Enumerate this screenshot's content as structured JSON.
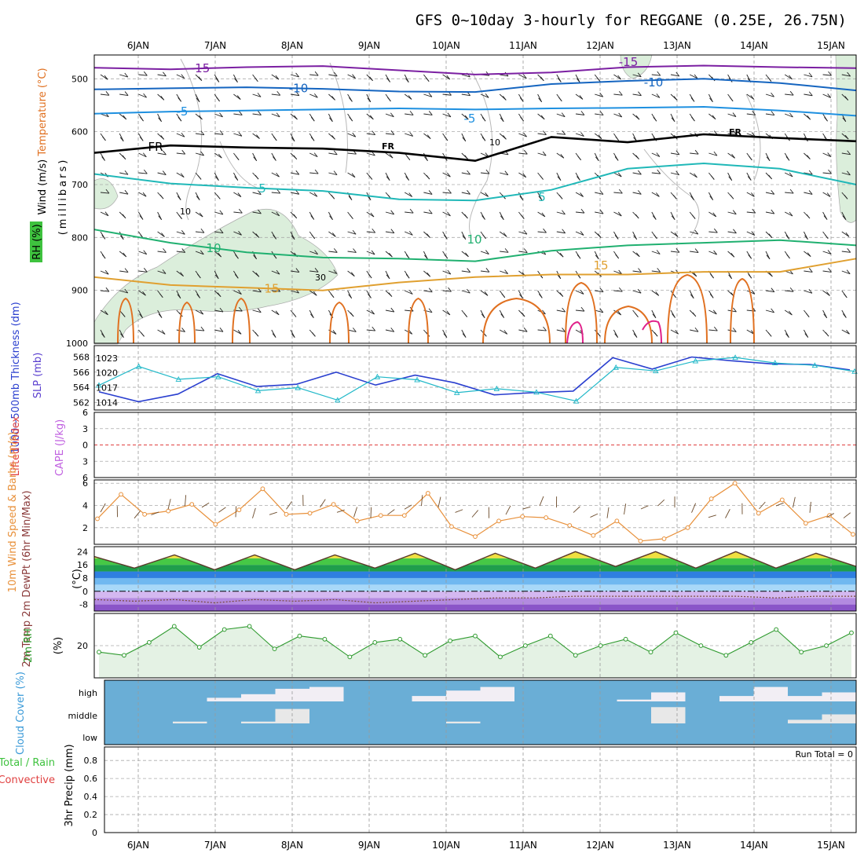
{
  "title": "GFS 0~10day 3-hourly for REGGANE (0.25E, 26.75N)",
  "dates": [
    "6JAN",
    "7JAN",
    "8JAN",
    "9JAN",
    "10JAN",
    "11JAN",
    "12JAN",
    "13JAN",
    "14JAN",
    "15JAN"
  ],
  "colors": {
    "rh_fill": "#dbeedb",
    "temp_purple": "#7b1fa2",
    "temp_blue": "#1565c0",
    "temp_lightblue": "#1e90e0",
    "temp_teal": "#20b8b8",
    "temp_green": "#20b070",
    "temp_orange": "#e0a030",
    "temp_darkorange": "#e07020",
    "temp_magenta": "#e0208a",
    "thickness": "#2a3fcf",
    "slp": "#20b8c8",
    "wind10": "#e8903a",
    "rh2m": "#2e9a2e",
    "cloud_bg": "#6aaed6",
    "cloud_fill": "#f2eef4",
    "lifted": "#e04040"
  },
  "chart_data": [
    {
      "panel": "upper_air",
      "type": "heatmap",
      "ylabel_parts": [
        "Wind (m/s)",
        "Temperature (°C)",
        "RH (%)",
        "(millibars)"
      ],
      "y_ticks": [
        500,
        600,
        700,
        800,
        900,
        1000
      ],
      "ylim": [
        1000,
        455
      ],
      "isotherms": [
        {
          "label": "-15",
          "pressure": [
            479,
            482,
            478,
            476,
            484,
            492,
            488,
            478,
            475,
            478,
            480
          ]
        },
        {
          "label": "-10",
          "pressure": [
            520,
            518,
            516,
            519,
            524,
            525,
            510,
            504,
            500,
            508,
            522
          ]
        },
        {
          "label": "-5",
          "pressure": [
            566,
            562,
            560,
            558,
            556,
            558,
            556,
            555,
            553,
            560,
            570
          ]
        },
        {
          "label": "FR",
          "pressure": [
            640,
            626,
            630,
            632,
            640,
            655,
            610,
            620,
            605,
            612,
            618
          ]
        },
        {
          "label": "5",
          "pressure": [
            680,
            698,
            706,
            712,
            728,
            730,
            710,
            670,
            660,
            670,
            700
          ]
        },
        {
          "label": "10",
          "pressure": [
            785,
            810,
            828,
            838,
            840,
            845,
            825,
            815,
            810,
            805,
            815
          ]
        },
        {
          "label": "15",
          "pressure": [
            875,
            890,
            895,
            900,
            885,
            875,
            870,
            870,
            865,
            865,
            840
          ]
        }
      ],
      "contour_labels": [
        "-15",
        "-10",
        "-5",
        "FR",
        "5",
        "10",
        "15",
        "10",
        "10",
        "30"
      ]
    },
    {
      "panel": "thickness_slp",
      "type": "line",
      "ylabel": "1000~500mb Thickness (dm)",
      "ylabel2": "SLP (mb)",
      "left_ticks": [
        562,
        564,
        566,
        568
      ],
      "right_ticks": [
        1014,
        1017,
        1020,
        1023
      ],
      "series": [
        {
          "name": "1000~500mb Thickness (dm)",
          "values": [
            563.4,
            562.1,
            563.1,
            565.8,
            564.1,
            564.4,
            566.0,
            564.3,
            565.6,
            564.6,
            563.0,
            563.3,
            563.5,
            567.9,
            566.4,
            568.0,
            567.5,
            567.1,
            567.0,
            566.3
          ]
        },
        {
          "name": "SLP (mb)",
          "values": [
            1017.5,
            1021.3,
            1018.7,
            1019.2,
            1016.4,
            1017.0,
            1014.5,
            1019.2,
            1018.6,
            1016.0,
            1016.8,
            1016.1,
            1014.3,
            1021.1,
            1020.4,
            1022.4,
            1023.1,
            1022.0,
            1021.5,
            1020.3
          ]
        }
      ]
    },
    {
      "panel": "lifted_index_cape",
      "type": "line",
      "ylabel": "Lifted Index",
      "ylabel2": "CAPE (J/kg)",
      "y_ticks": [
        6,
        3,
        0,
        -3,
        -6
      ],
      "series": [
        {
          "name": "Lifted Index",
          "values": [
            0,
            0
          ]
        }
      ]
    },
    {
      "panel": "wind10m",
      "type": "line",
      "ylabel": "10m Wind Speed & Barbs (m/s)",
      "y_ticks": [
        2,
        4,
        6
      ],
      "ylim": [
        0.5,
        6.3
      ],
      "series": [
        {
          "name": "10m Wind Speed",
          "values": [
            2.8,
            5.0,
            3.2,
            3.5,
            4.1,
            2.3,
            3.6,
            5.5,
            3.2,
            3.3,
            4.1,
            2.6,
            3.1,
            3.1,
            5.1,
            2.1,
            1.2,
            2.6,
            3.0,
            2.9,
            2.2,
            1.3,
            2.6,
            0.8,
            1.0,
            2.0,
            4.6,
            6.0,
            3.3,
            4.5,
            2.4,
            3.1,
            1.4
          ]
        }
      ]
    },
    {
      "panel": "temp2m",
      "type": "area",
      "ylabel": "2m Temp 2m DewPt (6hr Min/Max)",
      "unit": "(°C)",
      "y_ticks": [
        24,
        16,
        8,
        0,
        -8
      ],
      "ylim": [
        -12,
        27
      ],
      "series": [
        {
          "name": "2m Temp",
          "values": [
            21,
            14,
            22,
            13,
            22,
            13,
            22,
            14,
            23,
            13,
            23,
            14,
            24,
            15,
            24,
            14,
            24,
            14,
            23,
            15
          ]
        },
        {
          "name": "2m DewPt",
          "values": [
            -5,
            -6,
            -5,
            -7,
            -5,
            -6,
            -5,
            -7,
            -6,
            -5,
            -4,
            -4,
            -3,
            -3,
            -3,
            -3,
            -3,
            -4,
            -3,
            -3
          ]
        }
      ]
    },
    {
      "panel": "rh2m",
      "type": "area",
      "ylabel": "2m RH",
      "unit": "(%)",
      "y_ticks": [
        20
      ],
      "ylim": [
        0,
        40
      ],
      "series": [
        {
          "name": "2m RH",
          "values": [
            16,
            14,
            22,
            32,
            19,
            30,
            32,
            18,
            26,
            24,
            13,
            22,
            24,
            14,
            23,
            26,
            13,
            20,
            26,
            14,
            20,
            24,
            16,
            28,
            20,
            14,
            22,
            30,
            16,
            20,
            28
          ]
        }
      ]
    },
    {
      "panel": "cloud_cover",
      "type": "area",
      "ylabel": "Cloud Cover (%)",
      "categories": [
        "high",
        "middle",
        "low"
      ],
      "high_pct": [
        0,
        0,
        0,
        20,
        40,
        70,
        80,
        0,
        0,
        30,
        60,
        80,
        0,
        0,
        0,
        10,
        50,
        0,
        30,
        80,
        30,
        50
      ],
      "middle_pct": [
        0,
        0,
        10,
        0,
        10,
        80,
        0,
        0,
        0,
        0,
        10,
        0,
        0,
        0,
        0,
        0,
        90,
        0,
        0,
        0,
        20,
        50
      ],
      "low_pct": [
        0,
        0,
        0,
        0,
        0,
        0,
        0,
        0,
        0,
        0,
        0,
        0,
        0,
        0,
        0,
        0,
        0,
        0,
        0,
        0,
        0,
        0
      ]
    },
    {
      "panel": "precip",
      "type": "bar",
      "ylabel": "3hr Precip (mm)",
      "legend_labels": [
        "Total / Rain",
        "Convective"
      ],
      "run_total": "Run Total = 0",
      "y_ticks": [
        "0",
        "0.2",
        "0.4",
        "0.6",
        "0.8"
      ],
      "ylim": [
        0,
        0.95
      ],
      "values": [
        0,
        0,
        0,
        0,
        0,
        0,
        0,
        0,
        0,
        0
      ]
    }
  ]
}
